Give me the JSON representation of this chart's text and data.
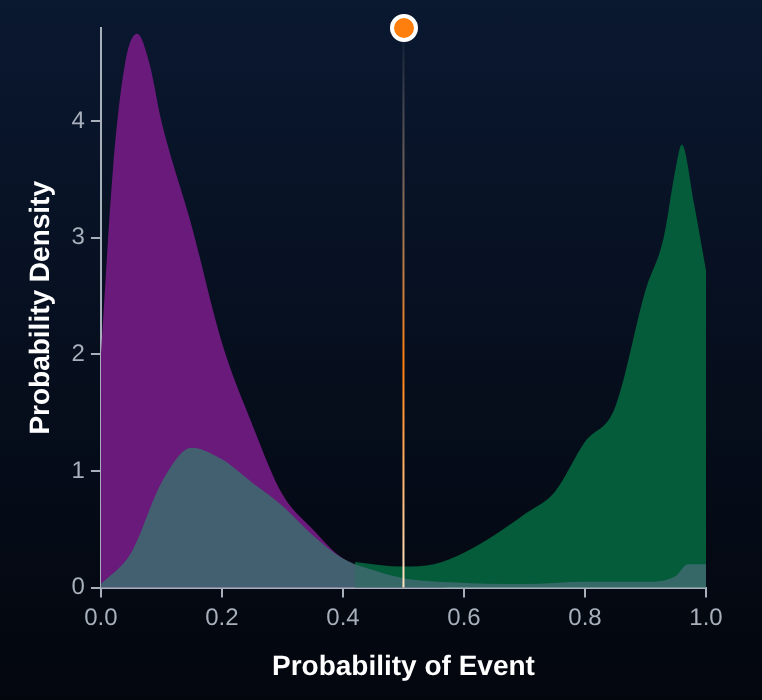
{
  "chart_data": {
    "type": "area",
    "xlabel": "Probability of Event",
    "ylabel": "Probability Density",
    "xlim": [
      0,
      1
    ],
    "xticks": [
      {
        "value": 0,
        "label": "0.0"
      },
      0.2,
      0.4,
      0.6,
      0.8,
      {
        "value": 1,
        "label": "1.0"
      }
    ],
    "ylim": [
      0,
      4.8
    ],
    "yticks": [
      0,
      1,
      2,
      3,
      4
    ],
    "grid": false,
    "legend": false,
    "marker": "none",
    "series": [
      {
        "color": "#6a1a7a",
        "x": [
          0,
          0.02,
          0.04,
          0.06,
          0.08,
          0.1,
          0.15,
          0.2,
          0.25,
          0.3,
          0.35,
          0.4,
          0.45,
          0.5,
          0.6,
          0.7,
          0.8,
          0.9,
          1
        ],
        "values": [
          2.0,
          3.6,
          4.5,
          4.75,
          4.5,
          4.0,
          3.1,
          2.1,
          1.4,
          0.8,
          0.5,
          0.25,
          null,
          null,
          0,
          0,
          0,
          0,
          0
        ]
      },
      {
        "color": "#055c3a",
        "x": [
          0.42,
          0.5,
          0.55,
          0.6,
          0.65,
          0.7,
          0.75,
          0.8,
          0.85,
          0.9,
          0.93,
          0.95,
          0.96,
          0.98,
          1
        ],
        "values": [
          0.22,
          0.18,
          0.2,
          0.3,
          0.45,
          0.63,
          0.82,
          1.25,
          1.55,
          2.55,
          3.0,
          3.6,
          3.8,
          3.3,
          2.72
        ]
      },
      {
        "color": "#3d6a6e",
        "x": [
          0,
          0.05,
          0.1,
          0.15,
          0.2,
          0.25,
          0.3,
          0.35,
          0.4,
          0.45,
          0.5,
          0.6,
          0.7,
          0.8,
          0.9,
          0.95,
          0.97,
          1
        ],
        "values": [
          0.03,
          0.3,
          0.9,
          1.2,
          1.1,
          0.9,
          0.7,
          0.45,
          0.25,
          0.15,
          0.08,
          0.04,
          0.03,
          0.05,
          0.05,
          0.1,
          0.2,
          0.2
        ]
      }
    ],
    "ref_lines": [
      {
        "axis": "x",
        "value": 0.5,
        "color": "#ff7f0e"
      }
    ]
  }
}
